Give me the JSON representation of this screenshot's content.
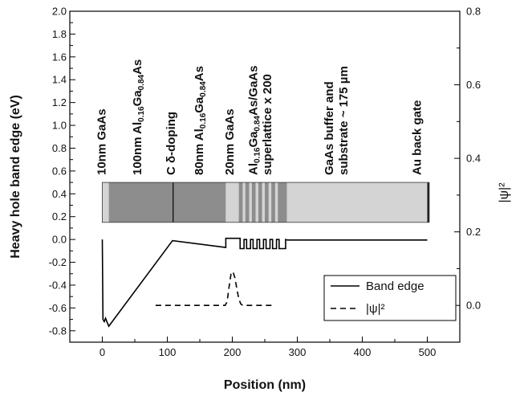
{
  "chart_data": {
    "type": "line",
    "xlabel": "Position (nm)",
    "ylabel": "Heavy hole band edge (eV)",
    "y2label": "|ψ|²",
    "xlim": [
      -50,
      550
    ],
    "ylim": [
      -0.9,
      2.0
    ],
    "y2lim": [
      -0.1,
      0.8
    ],
    "x_ticks": [
      "0",
      "100",
      "200",
      "300",
      "400",
      "500"
    ],
    "y_ticks": [
      "-0.8",
      "-0.6",
      "-0.4",
      "-0.2",
      "0.0",
      "0.2",
      "0.4",
      "0.6",
      "0.8",
      "1.0",
      "1.2",
      "1.4",
      "1.6",
      "1.8",
      "2.0"
    ],
    "y2_ticks": [
      "0.0",
      "0.2",
      "0.4",
      "0.6",
      "0.8"
    ],
    "legend_position": "bottom-right",
    "series": [
      {
        "name": "Band edge",
        "axis": "left",
        "style": "solid",
        "points": [
          [
            0,
            0.0
          ],
          [
            1,
            -0.7
          ],
          [
            3,
            -0.72
          ],
          [
            5,
            -0.69
          ],
          [
            7,
            -0.72
          ],
          [
            10,
            -0.76
          ],
          [
            108,
            -0.01
          ],
          [
            190,
            -0.07
          ],
          [
            190,
            0.01
          ],
          [
            212,
            0.01
          ],
          [
            212,
            -0.08
          ],
          [
            218,
            -0.08
          ],
          [
            218,
            0.0
          ],
          [
            222,
            0.0
          ],
          [
            222,
            -0.08
          ],
          [
            228,
            -0.08
          ],
          [
            228,
            0.0
          ],
          [
            232,
            0.0
          ],
          [
            232,
            -0.08
          ],
          [
            238,
            -0.08
          ],
          [
            238,
            0.0
          ],
          [
            242,
            0.0
          ],
          [
            242,
            -0.08
          ],
          [
            248,
            -0.08
          ],
          [
            248,
            0.0
          ],
          [
            252,
            0.0
          ],
          [
            252,
            -0.08
          ],
          [
            258,
            -0.08
          ],
          [
            258,
            0.0
          ],
          [
            262,
            0.0
          ],
          [
            262,
            -0.08
          ],
          [
            268,
            -0.08
          ],
          [
            268,
            0.0
          ],
          [
            272,
            0.0
          ],
          [
            272,
            -0.08
          ],
          [
            282,
            -0.08
          ],
          [
            282,
            0.0
          ],
          [
            285,
            -0.005
          ],
          [
            500,
            -0.005
          ]
        ]
      },
      {
        "name": "|ψ|²",
        "axis": "right",
        "style": "dashed",
        "points": [
          [
            82,
            0.0
          ],
          [
            189,
            0.0
          ],
          [
            192,
            0.01
          ],
          [
            195,
            0.05
          ],
          [
            198,
            0.085
          ],
          [
            201,
            0.092
          ],
          [
            204,
            0.075
          ],
          [
            207,
            0.045
          ],
          [
            210,
            0.018
          ],
          [
            213,
            0.004
          ],
          [
            216,
            0.0
          ],
          [
            265,
            0.0
          ]
        ]
      }
    ],
    "layer_strip": {
      "y_range": [
        0.15,
        0.5
      ],
      "segments": [
        {
          "from": 0,
          "to": 10,
          "color": "#d4d4d4"
        },
        {
          "from": 10,
          "to": 108,
          "color": "#8d8d8d"
        },
        {
          "from": 108,
          "to": 110,
          "color": "#1a1a1a"
        },
        {
          "from": 110,
          "to": 190,
          "color": "#8d8d8d"
        },
        {
          "from": 190,
          "to": 210,
          "color": "#d4d4d4"
        },
        {
          "from": 210,
          "to": 216,
          "color": "#8d8d8d"
        },
        {
          "from": 216,
          "to": 220,
          "color": "#d4d4d4"
        },
        {
          "from": 220,
          "to": 226,
          "color": "#8d8d8d"
        },
        {
          "from": 226,
          "to": 230,
          "color": "#d4d4d4"
        },
        {
          "from": 230,
          "to": 236,
          "color": "#8d8d8d"
        },
        {
          "from": 236,
          "to": 240,
          "color": "#d4d4d4"
        },
        {
          "from": 240,
          "to": 246,
          "color": "#8d8d8d"
        },
        {
          "from": 246,
          "to": 250,
          "color": "#d4d4d4"
        },
        {
          "from": 250,
          "to": 256,
          "color": "#8d8d8d"
        },
        {
          "from": 256,
          "to": 260,
          "color": "#d4d4d4"
        },
        {
          "from": 260,
          "to": 266,
          "color": "#8d8d8d"
        },
        {
          "from": 266,
          "to": 270,
          "color": "#d4d4d4"
        },
        {
          "from": 270,
          "to": 284,
          "color": "#8d8d8d"
        },
        {
          "from": 284,
          "to": 500,
          "color": "#d4d4d4"
        },
        {
          "from": 500,
          "to": 503,
          "color": "#1a1a1a"
        }
      ]
    },
    "annotations": [
      {
        "x": 5,
        "parts": [
          {
            "t": "10nm GaAs"
          }
        ]
      },
      {
        "x": 60,
        "parts": [
          {
            "t": "100nm Al"
          },
          {
            "t": "0.16",
            "sub": true
          },
          {
            "t": "Ga"
          },
          {
            "t": "0.84",
            "sub": true
          },
          {
            "t": "As"
          }
        ]
      },
      {
        "x": 112,
        "parts": [
          {
            "t": "C δ-doping"
          }
        ]
      },
      {
        "x": 155,
        "parts": [
          {
            "t": "80nm Al"
          },
          {
            "t": "0.16",
            "sub": true
          },
          {
            "t": "Ga"
          },
          {
            "t": "0.84",
            "sub": true
          },
          {
            "t": "As"
          }
        ]
      },
      {
        "x": 202,
        "parts": [
          {
            "t": "20nm GaAs"
          }
        ]
      },
      {
        "x": 238,
        "parts": [
          {
            "t": "Al"
          },
          {
            "t": "0.16",
            "sub": true
          },
          {
            "t": "Ga"
          },
          {
            "t": "0.84",
            "sub": true
          },
          {
            "t": "As/GaAs"
          }
        ]
      },
      {
        "x": 260,
        "parts": [
          {
            "t": "superlattice x 200"
          }
        ]
      },
      {
        "x": 355,
        "parts": [
          {
            "t": "GaAs buffer and"
          }
        ]
      },
      {
        "x": 377,
        "parts": [
          {
            "t": "substrate ~ 175 µm"
          }
        ]
      },
      {
        "x": 490,
        "parts": [
          {
            "t": "Au back gate"
          }
        ]
      }
    ]
  }
}
